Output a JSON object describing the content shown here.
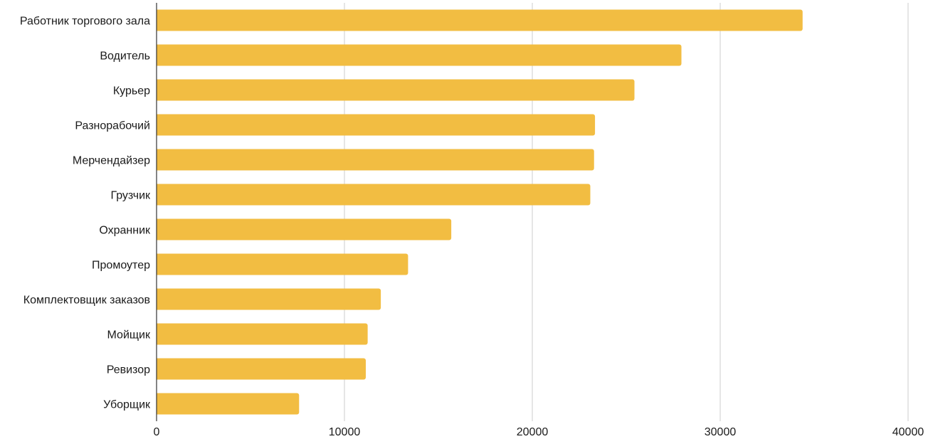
{
  "chart_data": {
    "type": "bar",
    "orientation": "horizontal",
    "categories": [
      "Работник торгового зала",
      "Водитель",
      "Курьер",
      "Разнорабочий",
      "Мерчендайзер",
      "Грузчик",
      "Охранник",
      "Промоутер",
      "Комплектовщик заказов",
      "Мойщик",
      "Ревизор",
      "Уборщик"
    ],
    "values": [
      34500,
      28050,
      25550,
      23450,
      23400,
      23200,
      15800,
      13500,
      12050,
      11350,
      11250,
      7700
    ],
    "xlim": [
      0,
      40000
    ],
    "xticks": [
      "0",
      "10000",
      "20000",
      "30000",
      "40000"
    ],
    "title": "",
    "xlabel": "",
    "ylabel": "",
    "grid": true,
    "legend": "none",
    "bar_color": "#F2BD42",
    "grid_color": "#CCCCCC",
    "axis_color": "#333333"
  }
}
